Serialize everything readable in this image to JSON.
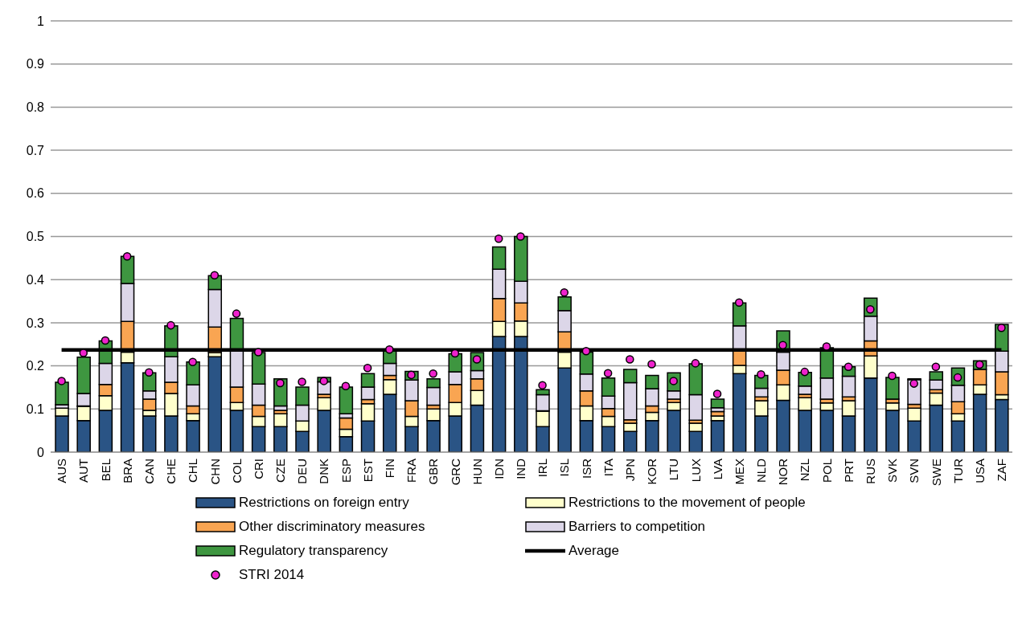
{
  "chart_data": {
    "type": "bar",
    "stacked": true,
    "grid": "y",
    "legend": "bottom",
    "categories": [
      "AUS",
      "AUT",
      "BEL",
      "BRA",
      "CAN",
      "CHE",
      "CHL",
      "CHN",
      "COL",
      "CRI",
      "CZE",
      "DEU",
      "DNK",
      "ESP",
      "EST",
      "FIN",
      "FRA",
      "GBR",
      "GRC",
      "HUN",
      "IDN",
      "IND",
      "IRL",
      "ISL",
      "ISR",
      "ITA",
      "JPN",
      "KOR",
      "LTU",
      "LUX",
      "LVA",
      "MEX",
      "NLD",
      "NOR",
      "NZL",
      "POL",
      "PRT",
      "RUS",
      "SVK",
      "SVN",
      "SWE",
      "TUR",
      "USA",
      "ZAF"
    ],
    "ylim": [
      0,
      1
    ],
    "yticks": [
      0,
      0.1,
      0.2,
      0.3,
      0.4,
      0.5,
      0.6,
      0.7,
      0.8,
      0.9,
      1
    ],
    "series": [
      {
        "name": "Restrictions on foreign entry",
        "color": "#2a5485",
        "values": [
          0.084,
          0.073,
          0.097,
          0.207,
          0.084,
          0.084,
          0.073,
          0.221,
          0.097,
          0.059,
          0.059,
          0.048,
          0.097,
          0.036,
          0.072,
          0.134,
          0.059,
          0.073,
          0.084,
          0.109,
          0.268,
          0.268,
          0.059,
          0.195,
          0.073,
          0.059,
          0.048,
          0.073,
          0.097,
          0.048,
          0.073,
          0.182,
          0.084,
          0.12,
          0.097,
          0.097,
          0.084,
          0.172,
          0.097,
          0.072,
          0.109,
          0.072,
          0.134,
          0.122
        ]
      },
      {
        "name": "Restrictions to the movement of people",
        "color": "#ffffcc",
        "values": [
          0.018,
          0.033,
          0.034,
          0.025,
          0.013,
          0.052,
          0.016,
          0.01,
          0.018,
          0.024,
          0.03,
          0.024,
          0.029,
          0.017,
          0.04,
          0.034,
          0.024,
          0.027,
          0.031,
          0.034,
          0.035,
          0.036,
          0.036,
          0.037,
          0.034,
          0.024,
          0.019,
          0.019,
          0.018,
          0.019,
          0.011,
          0.019,
          0.035,
          0.036,
          0.029,
          0.017,
          0.035,
          0.051,
          0.017,
          0.03,
          0.028,
          0.017,
          0.022,
          0.011
        ]
      },
      {
        "name": "Other discriminatory measures",
        "color": "#f9a552",
        "values": [
          null,
          0.001,
          0.026,
          0.071,
          0.026,
          0.026,
          0.018,
          0.059,
          0.036,
          0.026,
          0.008,
          null,
          0.008,
          0.026,
          0.01,
          0.01,
          0.036,
          0.009,
          0.042,
          0.027,
          0.053,
          0.042,
          0.001,
          0.047,
          0.035,
          0.018,
          0.008,
          0.015,
          0.008,
          0.007,
          0.01,
          0.034,
          0.009,
          0.034,
          0.008,
          0.009,
          0.009,
          0.035,
          0.009,
          0.009,
          0.008,
          0.028,
          0.036,
          0.053
        ]
      },
      {
        "name": "Barriers to competition",
        "color": "#dcd6e8",
        "values": [
          0.008,
          0.029,
          0.049,
          0.088,
          0.019,
          0.059,
          0.049,
          0.087,
          0.084,
          0.049,
          0.01,
          0.037,
          0.029,
          0.01,
          0.029,
          0.028,
          0.048,
          0.041,
          0.029,
          0.019,
          0.068,
          0.05,
          0.037,
          0.049,
          0.039,
          0.029,
          0.086,
          0.04,
          0.019,
          0.059,
          0.009,
          0.058,
          0.02,
          0.042,
          0.019,
          0.049,
          0.048,
          0.057,
          null,
          0.057,
          0.022,
          0.038,
          0,
          0.048
        ]
      },
      {
        "name": "Regulatory transparency",
        "color": "#3e9640",
        "values": [
          0.052,
          0.084,
          0.052,
          0.063,
          0.042,
          0.072,
          0.053,
          0.032,
          0.075,
          0.073,
          0.063,
          0.042,
          0.01,
          0.062,
          0.031,
          0.032,
          0.02,
          0.02,
          0.042,
          0.042,
          0.052,
          0.104,
          0.012,
          0.032,
          0.051,
          0.042,
          0.031,
          0.031,
          0.042,
          0.072,
          0.02,
          0.053,
          0.03,
          0.049,
          0.032,
          0.07,
          0.022,
          0.042,
          0.05,
          0.002,
          0.019,
          0.04,
          0.02,
          0.062
        ]
      },
      {
        "name": "Average",
        "type": "line",
        "color": "#000000",
        "line_style": "solid",
        "marker": "none",
        "values": [
          0.237,
          0.237,
          0.237,
          0.237,
          0.237,
          0.237,
          0.237,
          0.237,
          0.237,
          0.237,
          0.237,
          0.237,
          0.237,
          0.237,
          0.237,
          0.237,
          0.237,
          0.237,
          0.237,
          0.237,
          0.237,
          0.237,
          0.237,
          0.237,
          0.237,
          0.237,
          0.237,
          0.237,
          0.237,
          0.237,
          0.237,
          0.237,
          0.237,
          0.237,
          0.237,
          0.237,
          0.237,
          0.237,
          0.237,
          0.237,
          0.237,
          0.237,
          0.237,
          0.237
        ]
      },
      {
        "name": "STRI 2014",
        "type": "scatter",
        "color": "#ee22cc",
        "marker": "circle",
        "values": [
          0.165,
          0.23,
          0.259,
          0.454,
          0.185,
          0.294,
          0.209,
          0.41,
          0.321,
          0.232,
          0.16,
          0.163,
          0.165,
          0.153,
          0.195,
          0.238,
          0.179,
          0.182,
          0.229,
          0.215,
          0.495,
          0.5,
          0.155,
          0.37,
          0.234,
          0.183,
          0.215,
          0.204,
          0.165,
          0.206,
          0.135,
          0.347,
          0.18,
          0.248,
          0.186,
          0.245,
          0.198,
          0.331,
          0.177,
          0.159,
          0.198,
          0.173,
          0.203,
          0.288
        ]
      }
    ]
  }
}
